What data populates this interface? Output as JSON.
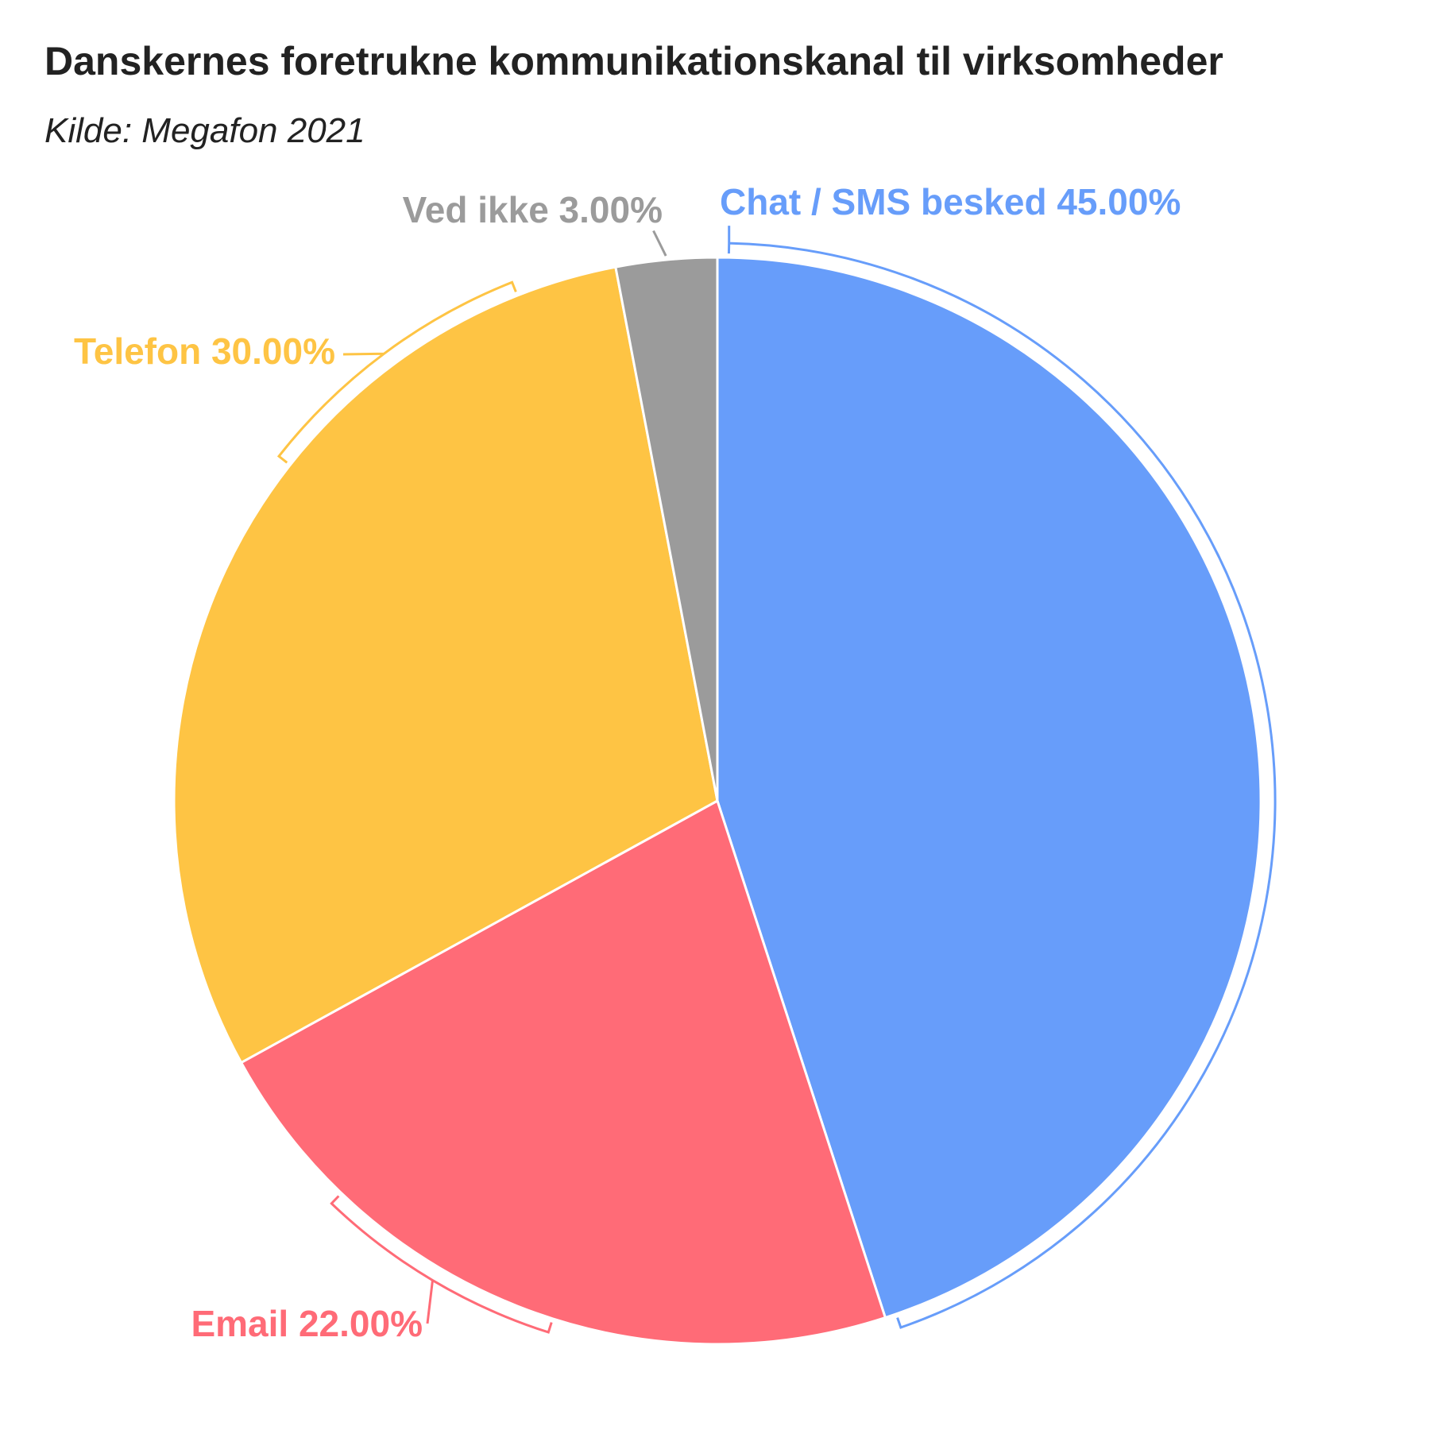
{
  "header": {
    "title": "Danskernes foretrukne kommunikationskanal til virksomheder",
    "subtitle": "Kilde: Megafon 2021"
  },
  "chart_data": {
    "type": "pie",
    "title": "Danskernes foretrukne kommunikationskanal til virksomheder",
    "subtitle": "Kilde: Megafon 2021",
    "slices": [
      {
        "label": "Chat / SMS besked",
        "value": 45.0,
        "display": "Chat / SMS besked 45.00%",
        "color": "#679DFA"
      },
      {
        "label": "Email",
        "value": 22.0,
        "display": "Email 22.00%",
        "color": "#FF6B77"
      },
      {
        "label": "Telefon",
        "value": 30.0,
        "display": "Telefon 30.00%",
        "color": "#FEC444"
      },
      {
        "label": "Ved ikke",
        "value": 3.0,
        "display": "Ved ikke 3.00%",
        "color": "#9B9B9B"
      }
    ],
    "start_angle": "12 o'clock",
    "direction": "clockwise",
    "legend": "none (labels next to slices)"
  }
}
